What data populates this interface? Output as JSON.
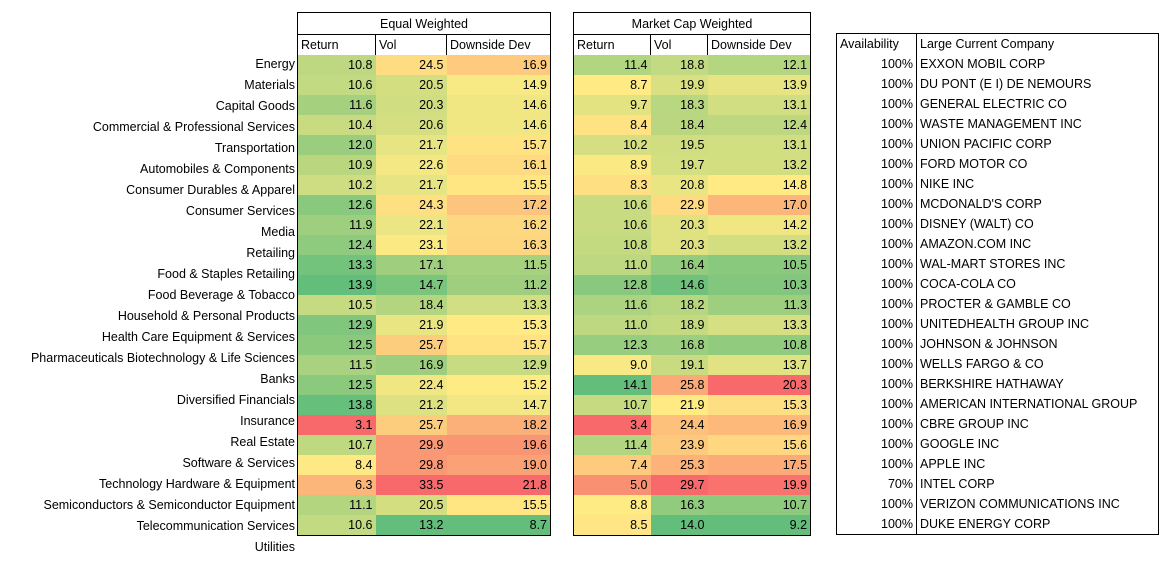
{
  "groups": {
    "equal_weighted": "Equal Weighted",
    "market_cap_weighted": "Market Cap Weighted"
  },
  "columns": {
    "return": "Return",
    "vol": "Vol",
    "downside_dev": "Downside Dev",
    "availability": "Availability",
    "large_company": "Large Current Company"
  },
  "rows": [
    {
      "sector": "Energy",
      "eq": [
        "10.8",
        "24.5",
        "16.9"
      ],
      "mc": [
        "11.4",
        "18.8",
        "12.1"
      ],
      "avail": "100%",
      "company": "EXXON MOBIL CORP"
    },
    {
      "sector": "Materials",
      "eq": [
        "10.6",
        "20.5",
        "14.9"
      ],
      "mc": [
        "8.7",
        "19.9",
        "13.9"
      ],
      "avail": "100%",
      "company": "DU PONT (E I) DE NEMOURS"
    },
    {
      "sector": "Capital Goods",
      "eq": [
        "11.6",
        "20.3",
        "14.6"
      ],
      "mc": [
        "9.7",
        "18.3",
        "13.1"
      ],
      "avail": "100%",
      "company": "GENERAL ELECTRIC CO"
    },
    {
      "sector": "Commercial & Professional Services",
      "eq": [
        "10.4",
        "20.6",
        "14.6"
      ],
      "mc": [
        "8.4",
        "18.4",
        "12.4"
      ],
      "avail": "100%",
      "company": "WASTE MANAGEMENT INC"
    },
    {
      "sector": "Transportation",
      "eq": [
        "12.0",
        "21.7",
        "15.7"
      ],
      "mc": [
        "10.2",
        "19.5",
        "13.1"
      ],
      "avail": "100%",
      "company": "UNION PACIFIC CORP"
    },
    {
      "sector": "Automobiles & Components",
      "eq": [
        "10.9",
        "22.6",
        "16.1"
      ],
      "mc": [
        "8.9",
        "19.7",
        "13.2"
      ],
      "avail": "100%",
      "company": "FORD MOTOR CO"
    },
    {
      "sector": "Consumer Durables & Apparel",
      "eq": [
        "10.2",
        "21.7",
        "15.5"
      ],
      "mc": [
        "8.3",
        "20.8",
        "14.8"
      ],
      "avail": "100%",
      "company": "NIKE INC"
    },
    {
      "sector": "Consumer Services",
      "eq": [
        "12.6",
        "24.3",
        "17.2"
      ],
      "mc": [
        "10.6",
        "22.9",
        "17.0"
      ],
      "avail": "100%",
      "company": "MCDONALD'S CORP"
    },
    {
      "sector": "Media",
      "eq": [
        "11.9",
        "22.1",
        "16.2"
      ],
      "mc": [
        "10.6",
        "20.3",
        "14.2"
      ],
      "avail": "100%",
      "company": "DISNEY (WALT) CO"
    },
    {
      "sector": "Retailing",
      "eq": [
        "12.4",
        "23.1",
        "16.3"
      ],
      "mc": [
        "10.8",
        "20.3",
        "13.2"
      ],
      "avail": "100%",
      "company": "AMAZON.COM INC"
    },
    {
      "sector": "Food & Staples Retailing",
      "eq": [
        "13.3",
        "17.1",
        "11.5"
      ],
      "mc": [
        "11.0",
        "16.4",
        "10.5"
      ],
      "avail": "100%",
      "company": "WAL-MART STORES INC"
    },
    {
      "sector": "Food Beverage & Tobacco",
      "eq": [
        "13.9",
        "14.7",
        "11.2"
      ],
      "mc": [
        "12.8",
        "14.6",
        "10.3"
      ],
      "avail": "100%",
      "company": "COCA-COLA CO"
    },
    {
      "sector": "Household & Personal Products",
      "eq": [
        "10.5",
        "18.4",
        "13.3"
      ],
      "mc": [
        "11.6",
        "18.2",
        "11.3"
      ],
      "avail": "100%",
      "company": "PROCTER & GAMBLE CO"
    },
    {
      "sector": "Health Care Equipment & Services",
      "eq": [
        "12.9",
        "21.9",
        "15.3"
      ],
      "mc": [
        "11.0",
        "18.9",
        "13.3"
      ],
      "avail": "100%",
      "company": "UNITEDHEALTH GROUP INC"
    },
    {
      "sector": "Pharmaceuticals Biotechnology & Life Sciences",
      "eq": [
        "12.5",
        "25.7",
        "15.7"
      ],
      "mc": [
        "12.3",
        "16.8",
        "10.8"
      ],
      "avail": "100%",
      "company": "JOHNSON & JOHNSON"
    },
    {
      "sector": "Banks",
      "eq": [
        "11.5",
        "16.9",
        "12.9"
      ],
      "mc": [
        "9.0",
        "19.1",
        "13.7"
      ],
      "avail": "100%",
      "company": "WELLS FARGO & CO"
    },
    {
      "sector": "Diversified Financials",
      "eq": [
        "12.5",
        "22.4",
        "15.2"
      ],
      "mc": [
        "14.1",
        "25.8",
        "20.3"
      ],
      "avail": "100%",
      "company": "BERKSHIRE HATHAWAY"
    },
    {
      "sector": "Insurance",
      "eq": [
        "13.8",
        "21.2",
        "14.7"
      ],
      "mc": [
        "10.7",
        "21.9",
        "15.3"
      ],
      "avail": "100%",
      "company": "AMERICAN INTERNATIONAL GROUP"
    },
    {
      "sector": "Real Estate",
      "eq": [
        "3.1",
        "25.7",
        "18.2"
      ],
      "mc": [
        "3.4",
        "24.4",
        "16.9"
      ],
      "avail": "100%",
      "company": "CBRE GROUP INC"
    },
    {
      "sector": "Software & Services",
      "eq": [
        "10.7",
        "29.9",
        "19.6"
      ],
      "mc": [
        "11.4",
        "23.9",
        "15.6"
      ],
      "avail": "100%",
      "company": "GOOGLE INC"
    },
    {
      "sector": "Technology Hardware & Equipment",
      "eq": [
        "8.4",
        "29.8",
        "19.0"
      ],
      "mc": [
        "7.4",
        "25.3",
        "17.5"
      ],
      "avail": "100%",
      "company": "APPLE INC"
    },
    {
      "sector": "Semiconductors & Semiconductor Equipment",
      "eq": [
        "6.3",
        "33.5",
        "21.8"
      ],
      "mc": [
        "5.0",
        "29.7",
        "19.9"
      ],
      "avail": "70%",
      "company": "INTEL CORP"
    },
    {
      "sector": "Telecommunication Services",
      "eq": [
        "11.1",
        "20.5",
        "15.5"
      ],
      "mc": [
        "8.8",
        "16.3",
        "10.7"
      ],
      "avail": "100%",
      "company": "VERIZON COMMUNICATIONS INC"
    },
    {
      "sector": "Utilities",
      "eq": [
        "10.6",
        "13.2",
        "8.7"
      ],
      "mc": [
        "8.5",
        "14.0",
        "9.2"
      ],
      "avail": "100%",
      "company": "DUKE ENERGY CORP"
    }
  ],
  "chart_data": {
    "type": "heatmap",
    "title": "",
    "color_scale": {
      "low": "#f8696b",
      "mid": "#ffeb84",
      "high": "#63be7b"
    },
    "color_note": "Return: higher is green; Vol and Downside Dev: lower is green",
    "groups": [
      "Equal Weighted",
      "Market Cap Weighted"
    ],
    "metrics": [
      "Return",
      "Vol",
      "Downside Dev"
    ],
    "categories": [
      "Energy",
      "Materials",
      "Capital Goods",
      "Commercial & Professional Services",
      "Transportation",
      "Automobiles & Components",
      "Consumer Durables & Apparel",
      "Consumer Services",
      "Media",
      "Retailing",
      "Food & Staples Retailing",
      "Food Beverage & Tobacco",
      "Household & Personal Products",
      "Health Care Equipment & Services",
      "Pharmaceuticals Biotechnology & Life Sciences",
      "Banks",
      "Diversified Financials",
      "Insurance",
      "Real Estate",
      "Software & Services",
      "Technology Hardware & Equipment",
      "Semiconductors & Semiconductor Equipment",
      "Telecommunication Services",
      "Utilities"
    ],
    "series": [
      {
        "name": "Equal Weighted Return",
        "values": [
          10.8,
          10.6,
          11.6,
          10.4,
          12.0,
          10.9,
          10.2,
          12.6,
          11.9,
          12.4,
          13.3,
          13.9,
          10.5,
          12.9,
          12.5,
          11.5,
          12.5,
          13.8,
          3.1,
          10.7,
          8.4,
          6.3,
          11.1,
          10.6
        ]
      },
      {
        "name": "Equal Weighted Vol",
        "values": [
          24.5,
          20.5,
          20.3,
          20.6,
          21.7,
          22.6,
          21.7,
          24.3,
          22.1,
          23.1,
          17.1,
          14.7,
          18.4,
          21.9,
          25.7,
          16.9,
          22.4,
          21.2,
          25.7,
          29.9,
          29.8,
          33.5,
          20.5,
          13.2
        ]
      },
      {
        "name": "Equal Weighted Downside Dev",
        "values": [
          16.9,
          14.9,
          14.6,
          14.6,
          15.7,
          16.1,
          15.5,
          17.2,
          16.2,
          16.3,
          11.5,
          11.2,
          13.3,
          15.3,
          15.7,
          12.9,
          15.2,
          14.7,
          18.2,
          19.6,
          19.0,
          21.8,
          15.5,
          8.7
        ]
      },
      {
        "name": "Market Cap Weighted Return",
        "values": [
          11.4,
          8.7,
          9.7,
          8.4,
          10.2,
          8.9,
          8.3,
          10.6,
          10.6,
          10.8,
          11.0,
          12.8,
          11.6,
          11.0,
          12.3,
          9.0,
          14.1,
          10.7,
          3.4,
          11.4,
          7.4,
          5.0,
          8.8,
          8.5
        ]
      },
      {
        "name": "Market Cap Weighted Vol",
        "values": [
          18.8,
          19.9,
          18.3,
          18.4,
          19.5,
          19.7,
          20.8,
          22.9,
          20.3,
          20.3,
          16.4,
          14.6,
          18.2,
          18.9,
          16.8,
          19.1,
          25.8,
          21.9,
          24.4,
          23.9,
          25.3,
          29.7,
          16.3,
          14.0
        ]
      },
      {
        "name": "Market Cap Weighted Downside Dev",
        "values": [
          12.1,
          13.9,
          13.1,
          12.4,
          13.1,
          13.2,
          14.8,
          17.0,
          14.2,
          13.2,
          10.5,
          10.3,
          11.3,
          13.3,
          10.8,
          13.7,
          20.3,
          15.3,
          16.9,
          15.6,
          17.5,
          19.9,
          10.7,
          9.2
        ]
      }
    ]
  }
}
